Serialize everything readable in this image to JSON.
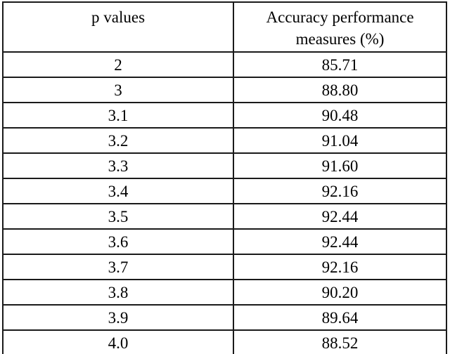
{
  "table": {
    "header": {
      "col1": "p values",
      "col2_line1": "Accuracy performance",
      "col2_line2": "measures (%)"
    },
    "rows": [
      {
        "p": "2",
        "acc": "85.71"
      },
      {
        "p": "3",
        "acc": "88.80"
      },
      {
        "p": "3.1",
        "acc": "90.48"
      },
      {
        "p": "3.2",
        "acc": "91.04"
      },
      {
        "p": "3.3",
        "acc": "91.60"
      },
      {
        "p": "3.4",
        "acc": "92.16"
      },
      {
        "p": "3.5",
        "acc": "92.44"
      },
      {
        "p": "3.6",
        "acc": "92.44"
      },
      {
        "p": "3.7",
        "acc": "92.16"
      },
      {
        "p": "3.8",
        "acc": "90.20"
      },
      {
        "p": "3.9",
        "acc": "89.64"
      },
      {
        "p": "4.0",
        "acc": "88.52"
      }
    ],
    "colors": {
      "border": "#1a1a1a",
      "text": "#000000",
      "background": "#ffffff"
    }
  },
  "chart_data": {
    "type": "table",
    "title": "",
    "columns": [
      "p values",
      "Accuracy performance measures (%)"
    ],
    "rows": [
      [
        2,
        85.71
      ],
      [
        3,
        88.8
      ],
      [
        3.1,
        90.48
      ],
      [
        3.2,
        91.04
      ],
      [
        3.3,
        91.6
      ],
      [
        3.4,
        92.16
      ],
      [
        3.5,
        92.44
      ],
      [
        3.6,
        92.44
      ],
      [
        3.7,
        92.16
      ],
      [
        3.8,
        90.2
      ],
      [
        3.9,
        89.64
      ],
      [
        4.0,
        88.52
      ]
    ]
  }
}
